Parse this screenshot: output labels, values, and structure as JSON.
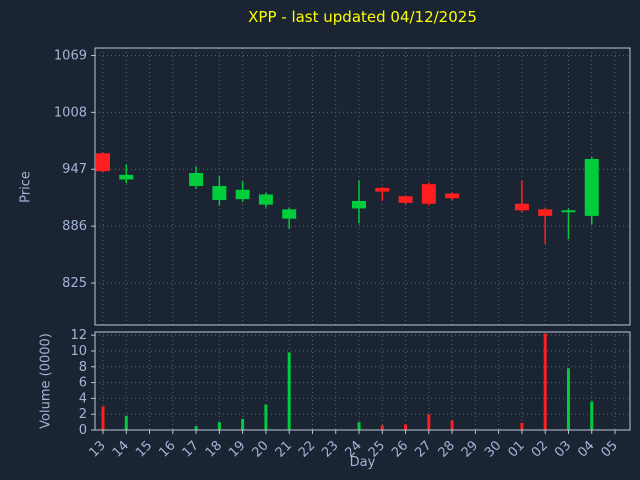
{
  "title": "XPP - last updated 04/12/2025",
  "chart_data": {
    "type": "candlestick",
    "title": "XPP - last updated 04/12/2025",
    "xlabel": "Day",
    "price_axis": {
      "label": "Price",
      "ticks": [
        1069,
        1008,
        947,
        886,
        825
      ],
      "range": [
        780,
        1077
      ]
    },
    "volume_axis": {
      "label": "Volume (0000)",
      "ticks": [
        12,
        10,
        8,
        6,
        4,
        2,
        0
      ],
      "range": [
        0,
        12.4
      ]
    },
    "days": [
      "13",
      "14",
      "15",
      "16",
      "17",
      "18",
      "19",
      "20",
      "21",
      "22",
      "23",
      "24",
      "25",
      "26",
      "27",
      "28",
      "29",
      "30",
      "01",
      "02",
      "03",
      "04",
      "05"
    ],
    "candles": [
      {
        "day": "13",
        "open": 964,
        "high": 965,
        "low": 944,
        "close": 945,
        "volume": 3.0
      },
      {
        "day": "14",
        "open": 936,
        "high": 952,
        "low": 932,
        "close": 941,
        "volume": 1.8
      },
      {
        "day": "17",
        "open": 929,
        "high": 950,
        "low": 926,
        "close": 943,
        "volume": 0.5
      },
      {
        "day": "18",
        "open": 914,
        "high": 940,
        "low": 908,
        "close": 929,
        "volume": 1.0
      },
      {
        "day": "19",
        "open": 915,
        "high": 934,
        "low": 912,
        "close": 925,
        "volume": 1.4
      },
      {
        "day": "20",
        "open": 909,
        "high": 922,
        "low": 906,
        "close": 920,
        "volume": 3.2
      },
      {
        "day": "21",
        "open": 894,
        "high": 906,
        "low": 883,
        "close": 904,
        "volume": 9.8
      },
      {
        "day": "24",
        "open": 905,
        "high": 935,
        "low": 889,
        "close": 913,
        "volume": 1.0
      },
      {
        "day": "25",
        "open": 927,
        "high": 928,
        "low": 913,
        "close": 923,
        "volume": 0.6
      },
      {
        "day": "26",
        "open": 918,
        "high": 919,
        "low": 909,
        "close": 911,
        "volume": 0.7
      },
      {
        "day": "27",
        "open": 931,
        "high": 933,
        "low": 908,
        "close": 910,
        "volume": 2.0
      },
      {
        "day": "28",
        "open": 921,
        "high": 922,
        "low": 914,
        "close": 916,
        "volume": 1.2
      },
      {
        "day": "01",
        "open": 910,
        "high": 935,
        "low": 901,
        "close": 903,
        "volume": 0.9
      },
      {
        "day": "02",
        "open": 904,
        "high": 906,
        "low": 867,
        "close": 897,
        "volume": 12.2
      },
      {
        "day": "03",
        "open": 901,
        "high": 905,
        "low": 872,
        "close": 903,
        "volume": 7.8
      },
      {
        "day": "04",
        "open": 897,
        "high": 960,
        "low": 888,
        "close": 958,
        "volume": 3.6
      }
    ],
    "colors": {
      "background": "#1a2433",
      "title": "#ffff00",
      "axis_text": "#a3b5d6",
      "grid": "#54657a",
      "border": "#b9c6d8",
      "up": "#00cc3c",
      "down": "#ff1f1f"
    },
    "legend": "none",
    "grid_style": "dotted"
  }
}
